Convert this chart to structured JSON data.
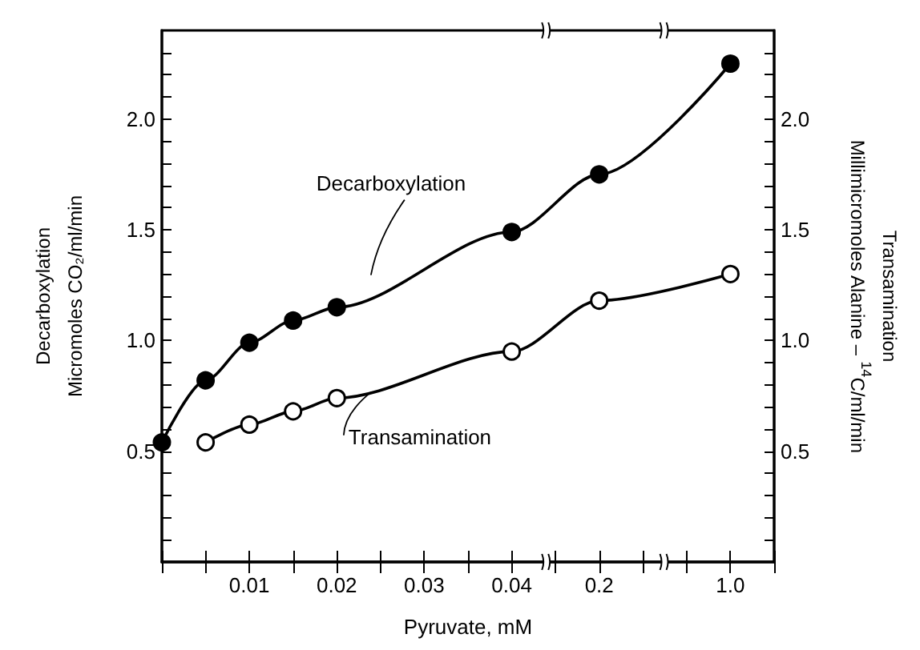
{
  "chart_data": {
    "type": "line",
    "xlabel": "Pyruvate, mM",
    "ylabel": "Decarboxylation\nMicromoles CO₂/ml/min",
    "y2label": "Transamination\nMillimicromoles Alanine – $^{14}$C/ml/min",
    "categories": [
      null,
      null,
      "0.01",
      null,
      "0.02",
      null,
      "0.03",
      null,
      "0.04",
      null,
      "0.2",
      null,
      null,
      "1.0",
      null
    ],
    "series": [
      {
        "name": "Decarboxylation",
        "color": "#000000",
        "values": [
          0.54,
          0.82,
          0.99,
          1.09,
          1.15,
          null,
          null,
          null,
          1.49,
          null,
          1.75,
          null,
          null,
          2.25,
          null
        ]
      },
      {
        "name": "Transamination",
        "color": "#000000",
        "values": [
          null,
          0.54,
          0.62,
          0.68,
          0.74,
          null,
          null,
          null,
          0.95,
          null,
          1.18,
          null,
          null,
          1.3,
          null
        ]
      }
    ],
    "ylim": [
      0,
      2.4
    ],
    "yticks": [
      {
        "value": 0.1,
        "label": null
      },
      {
        "value": 0.2,
        "label": null
      },
      {
        "value": 0.3,
        "label": null
      },
      {
        "value": 0.4,
        "label": null
      },
      0.5,
      {
        "value": 0.6,
        "label": null
      },
      {
        "value": 0.7,
        "label": null
      },
      {
        "value": 0.8,
        "label": null
      },
      {
        "value": 0.9,
        "label": null
      },
      {
        "value": 1.0,
        "label": "1.0"
      },
      {
        "value": 1.1,
        "label": null
      },
      {
        "value": 1.2,
        "label": null
      },
      {
        "value": 1.3,
        "label": null
      },
      {
        "value": 1.4,
        "label": null
      },
      1.5,
      {
        "value": 1.6,
        "label": null
      },
      {
        "value": 1.7,
        "label": null
      },
      {
        "value": 1.8,
        "label": null
      },
      {
        "value": 1.9,
        "label": null
      },
      {
        "value": 2.0,
        "label": "2.0"
      },
      {
        "value": 2.1,
        "label": null
      },
      {
        "value": 2.2,
        "label": null
      },
      {
        "value": 2.3,
        "label": null
      }
    ],
    "y2lim": [
      0,
      2.4
    ],
    "y2ticks": [
      {
        "value": 0.1,
        "label": null
      },
      {
        "value": 0.2,
        "label": null
      },
      {
        "value": 0.3,
        "label": null
      },
      {
        "value": 0.4,
        "label": null
      },
      0.5,
      {
        "value": 0.6,
        "label": null
      },
      {
        "value": 0.7,
        "label": null
      },
      {
        "value": 0.8,
        "label": null
      },
      {
        "value": 0.9,
        "label": null
      },
      {
        "value": 1.0,
        "label": "1.0"
      },
      {
        "value": 1.1,
        "label": null
      },
      {
        "value": 1.2,
        "label": null
      },
      {
        "value": 1.3,
        "label": null
      },
      {
        "value": 1.4,
        "label": null
      },
      1.5,
      {
        "value": 1.6,
        "label": null
      },
      {
        "value": 1.7,
        "label": null
      },
      {
        "value": 1.8,
        "label": null
      },
      {
        "value": 1.9,
        "label": null
      },
      {
        "value": 2.0,
        "label": "2.0"
      },
      {
        "value": 2.1,
        "label": null
      },
      {
        "value": 2.2,
        "label": null
      },
      {
        "value": 2.3,
        "label": null
      }
    ],
    "marker": "circle",
    "line_style": "solid",
    "grid": false,
    "legend": false
  }
}
